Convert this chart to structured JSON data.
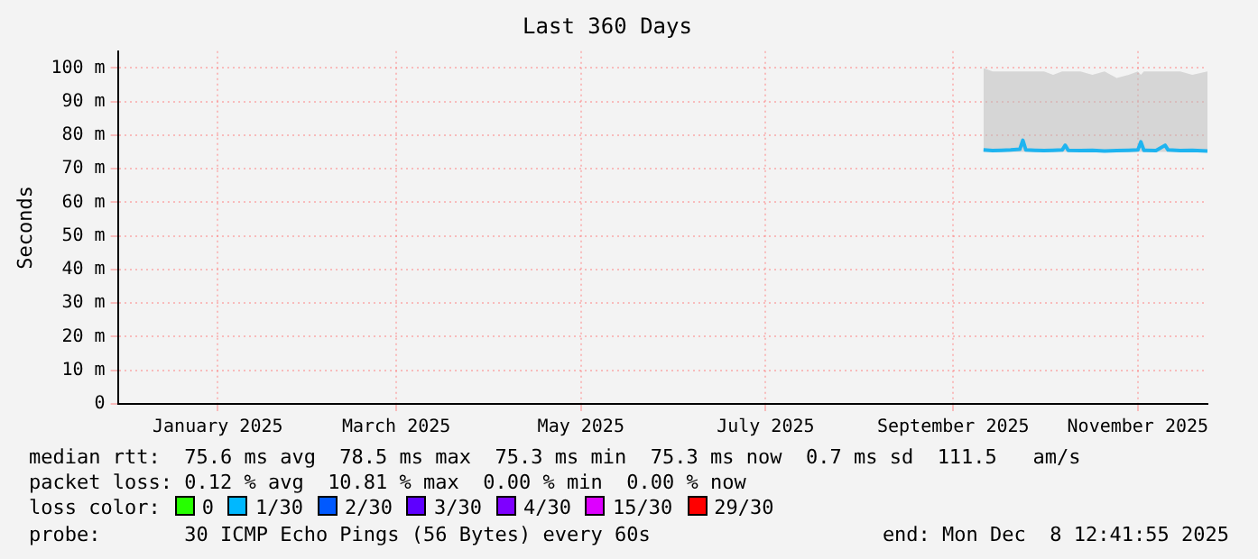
{
  "chart_data": {
    "type": "line",
    "title": "Last 360 Days",
    "ylabel": "Seconds",
    "x": [
      "2025-09-25",
      "2025-09-28",
      "2025-10-01",
      "2025-10-04",
      "2025-10-07",
      "2025-10-08",
      "2025-10-09",
      "2025-10-12",
      "2025-10-15",
      "2025-10-18",
      "2025-10-21",
      "2025-10-22",
      "2025-10-23",
      "2025-10-27",
      "2025-10-31",
      "2025-11-04",
      "2025-11-08",
      "2025-11-12",
      "2025-11-15",
      "2025-11-16",
      "2025-11-17",
      "2025-11-21",
      "2025-11-24",
      "2025-11-25",
      "2025-11-29",
      "2025-12-03",
      "2025-12-08"
    ],
    "series": [
      {
        "color": "#1eb4f0",
        "values": [
          75.6,
          75.4,
          75.5,
          75.6,
          75.8,
          78.5,
          75.6,
          75.5,
          75.4,
          75.5,
          75.6,
          77.0,
          75.5,
          75.4,
          75.5,
          75.3,
          75.4,
          75.5,
          75.6,
          78.0,
          75.5,
          75.4,
          77.0,
          75.6,
          75.4,
          75.5,
          75.3
        ],
        "lower": [
          75,
          75,
          75,
          75,
          75,
          75,
          75,
          75,
          75,
          75,
          75,
          75,
          75,
          75,
          75,
          75,
          75,
          75,
          75,
          75,
          75,
          75,
          75,
          75,
          75,
          75,
          75
        ],
        "upper": [
          100,
          99,
          99,
          99,
          99,
          99,
          99,
          99,
          99,
          98,
          99,
          99,
          99,
          99,
          98,
          99,
          97,
          98,
          99,
          98,
          99,
          99,
          99,
          99,
          99,
          98,
          99
        ]
      }
    ],
    "xlim": [
      "2024-12-13",
      "2025-12-08"
    ],
    "xticks": [
      {
        "value": "2025-01-15",
        "label": "January 2025"
      },
      {
        "value": "2025-03-15",
        "label": "March 2025"
      },
      {
        "value": "2025-05-15",
        "label": "May 2025"
      },
      {
        "value": "2025-07-15",
        "label": "July 2025"
      },
      {
        "value": "2025-09-15",
        "label": "September 2025"
      },
      {
        "value": "2025-11-15",
        "label": "November 2025"
      }
    ],
    "ylim": [
      0,
      105
    ],
    "yticks": [
      0,
      {
        "value": 10,
        "label": "10 m"
      },
      {
        "value": 20,
        "label": "20 m"
      },
      {
        "value": 30,
        "label": "30 m"
      },
      {
        "value": 40,
        "label": "40 m"
      },
      {
        "value": 50,
        "label": "50 m"
      },
      {
        "value": 60,
        "label": "60 m"
      },
      {
        "value": 70,
        "label": "70 m"
      },
      {
        "value": 80,
        "label": "80 m"
      },
      {
        "value": 90,
        "label": "90 m"
      },
      {
        "value": 100,
        "label": "100 m"
      }
    ],
    "grid": true,
    "legend": false,
    "marker": "none",
    "line_style": "solid",
    "annotations": [
      "median rtt:  75.6 ms avg  78.5 ms max  75.3 ms min  75.3 ms now  0.7 ms sd  111.5   am/s",
      "packet loss: 0.12 % avg  10.81 % max  0.00 % min  0.00 % now",
      "loss color:",
      "0",
      "1/30",
      "2/30",
      "3/30",
      "4/30",
      "15/30",
      "29/30",
      "probe:       30 ICMP Echo Pings (56 Bytes) every 60s",
      "end: Mon Dec  8 12:41:55 2025"
    ]
  }
}
